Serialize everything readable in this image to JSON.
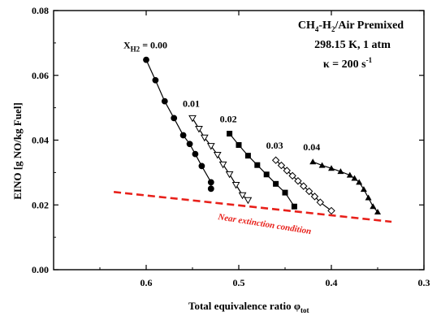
{
  "chart_data": {
    "type": "line",
    "title": "",
    "xlabel": "Total equivalence ratio φtot",
    "ylabel": "EINO [g NO/kg Fuel]",
    "xlim": [
      0.3,
      0.7
    ],
    "x_reversed": true,
    "ylim": [
      0.0,
      0.08
    ],
    "x_ticks": [
      0.6,
      0.5,
      0.4,
      0.3
    ],
    "y_ticks": [
      0.0,
      0.02,
      0.04,
      0.06,
      0.08
    ],
    "x_tick_labels": [
      "0.6",
      "0.5",
      "0.4",
      "0.3"
    ],
    "y_tick_labels": [
      "0.00",
      "0.02",
      "0.04",
      "0.06",
      "0.08"
    ],
    "annotation": {
      "line1_main": "CH",
      "line1_sub_a": "4",
      "line1_mid": "-H",
      "line1_sub_b": "2",
      "line1_end": "/Air Premixed",
      "line2": "298.15 K, 1 atm",
      "line3_main": "κ = 200 s",
      "line3_sup": "-1"
    },
    "series": [
      {
        "name": "0.00",
        "label_prefix": "X",
        "label_sub": "H2",
        "label_suffix": " = 0.00",
        "marker": "circle-filled",
        "points": [
          [
            0.6,
            0.0648
          ],
          [
            0.59,
            0.0585
          ],
          [
            0.58,
            0.052
          ],
          [
            0.57,
            0.0468
          ],
          [
            0.56,
            0.0415
          ],
          [
            0.553,
            0.0388
          ],
          [
            0.547,
            0.0357
          ],
          [
            0.54,
            0.032
          ],
          [
            0.53,
            0.027
          ],
          [
            0.53,
            0.025
          ]
        ]
      },
      {
        "name": "0.01",
        "marker": "triangle-down-open",
        "points": [
          [
            0.55,
            0.0468
          ],
          [
            0.543,
            0.0435
          ],
          [
            0.537,
            0.0408
          ],
          [
            0.53,
            0.0382
          ],
          [
            0.523,
            0.0355
          ],
          [
            0.517,
            0.0325
          ],
          [
            0.51,
            0.0295
          ],
          [
            0.503,
            0.0262
          ],
          [
            0.496,
            0.023
          ],
          [
            0.49,
            0.0215
          ]
        ]
      },
      {
        "name": "0.02",
        "marker": "square-filled",
        "points": [
          [
            0.51,
            0.042
          ],
          [
            0.5,
            0.0385
          ],
          [
            0.49,
            0.0352
          ],
          [
            0.48,
            0.0323
          ],
          [
            0.47,
            0.0294
          ],
          [
            0.46,
            0.0265
          ],
          [
            0.45,
            0.0238
          ],
          [
            0.44,
            0.0195
          ]
        ]
      },
      {
        "name": "0.03",
        "marker": "diamond-open",
        "points": [
          [
            0.46,
            0.0338
          ],
          [
            0.454,
            0.0322
          ],
          [
            0.448,
            0.0306
          ],
          [
            0.442,
            0.029
          ],
          [
            0.436,
            0.0274
          ],
          [
            0.43,
            0.0258
          ],
          [
            0.424,
            0.0242
          ],
          [
            0.418,
            0.0226
          ],
          [
            0.412,
            0.0208
          ],
          [
            0.4,
            0.0182
          ]
        ]
      },
      {
        "name": "0.04",
        "marker": "triangle-up-filled",
        "points": [
          [
            0.42,
            0.0333
          ],
          [
            0.41,
            0.0322
          ],
          [
            0.4,
            0.0313
          ],
          [
            0.39,
            0.0303
          ],
          [
            0.38,
            0.0292
          ],
          [
            0.375,
            0.0282
          ],
          [
            0.37,
            0.027
          ],
          [
            0.365,
            0.0248
          ],
          [
            0.36,
            0.0222
          ],
          [
            0.355,
            0.0195
          ],
          [
            0.35,
            0.0178
          ]
        ]
      }
    ],
    "extinction_line": {
      "label": "Near extinction condition",
      "color": "#e8201a",
      "dash": true,
      "points": [
        [
          0.635,
          0.024
        ],
        [
          0.335,
          0.0148
        ]
      ]
    }
  }
}
